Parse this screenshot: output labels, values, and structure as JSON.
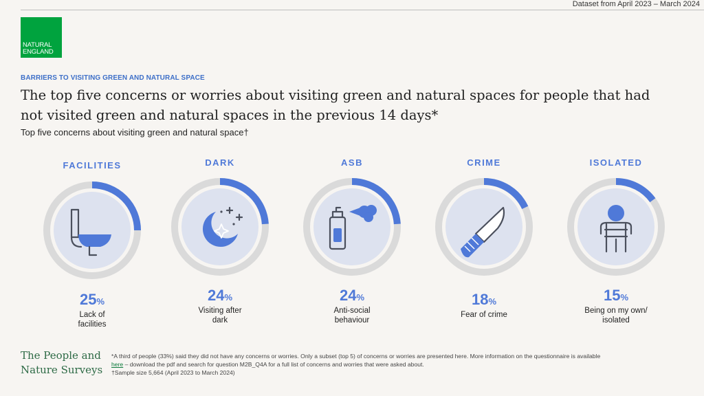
{
  "dataset": "Dataset from April 2023 – March 2024",
  "logo": {
    "line1": "NATURAL",
    "line2": "ENGLAND"
  },
  "kicker": "BARRIERS TO VISITING GREEN AND NATURAL SPACE",
  "title": "The top five concerns or worries about visiting green and natural spaces for people that had not visited green and natural spaces in the previous 14 days*",
  "subtitle": "Top five concerns about visiting green and natural space†",
  "chart_data": {
    "type": "gauge",
    "title": "The top five concerns or worries about visiting green and natural spaces for people that had not visited green and natural spaces in the previous 14 days*",
    "subtitle": "Top five concerns about visiting green and natural space†",
    "categories": [
      "FACILITIES",
      "DARK",
      "ASB",
      "CRIME",
      "ISOLATED"
    ],
    "series": [
      {
        "values": [
          25,
          24,
          24,
          18,
          15
        ]
      }
    ],
    "value_labels": [
      "25",
      "24",
      "24",
      "18",
      "15"
    ],
    "unit": "%",
    "descriptions": [
      [
        "Lack of",
        "facilities"
      ],
      [
        "Visiting after",
        "dark"
      ],
      [
        "Anti-social",
        "behaviour"
      ],
      [
        "Fear of crime"
      ],
      [
        "Being on my own/",
        "isolated"
      ]
    ],
    "icons": [
      "toilet-icon",
      "moon-stars-icon",
      "spray-can-icon",
      "knife-icon",
      "isolated-person-icon"
    ],
    "ylim": [
      0,
      100
    ],
    "colors": {
      "accent": "#4f79d8",
      "track": "#dadada",
      "disc": "#dde2ef",
      "category": "#4f79d8"
    }
  },
  "footer": {
    "brand_line1": "The People and",
    "brand_line2": "Nature Surveys",
    "note_part1": "*A third of people (33%) said they did not have any concerns or worries. Only a subset (top 5) of concerns or worries are presented here. More information on the questionnaire is available ",
    "note_link": "here",
    "note_part2": " – download the pdf and search for question M2B_Q4A for a full list of concerns and worries that were asked about.",
    "note_line3": "†Sample size 5,664 (April 2023 to March 2024)"
  }
}
